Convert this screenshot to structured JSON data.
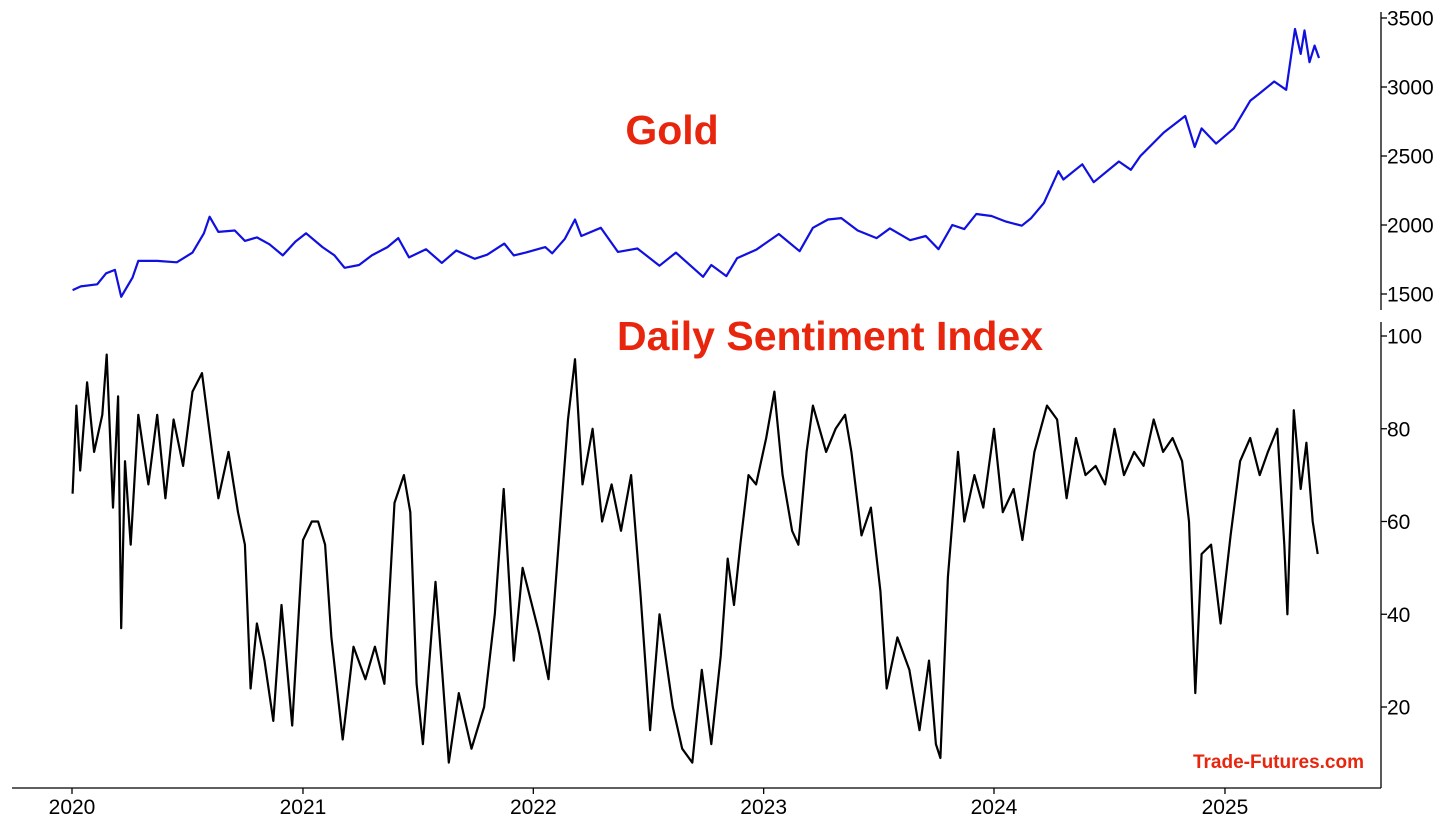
{
  "chart_data": [
    {
      "type": "line",
      "title": "Gold",
      "x_range": [
        "2020-01-01",
        "2025-05-31"
      ],
      "ylim": [
        1400,
        3520
      ],
      "y_ticks": [
        "1500",
        "2000",
        "2500",
        "3000",
        "3500"
      ],
      "grid": false,
      "color": "#1010e0",
      "series": [
        {
          "points": [
            [
              "2020-01-02",
              1528
            ],
            [
              "2020-01-15",
              1555
            ],
            [
              "2020-02-10",
              1570
            ],
            [
              "2020-02-24",
              1650
            ],
            [
              "2020-03-09",
              1675
            ],
            [
              "2020-03-19",
              1480
            ],
            [
              "2020-04-06",
              1620
            ],
            [
              "2020-04-15",
              1740
            ],
            [
              "2020-05-15",
              1740
            ],
            [
              "2020-06-15",
              1730
            ],
            [
              "2020-07-10",
              1800
            ],
            [
              "2020-07-28",
              1940
            ],
            [
              "2020-08-06",
              2060
            ],
            [
              "2020-08-20",
              1950
            ],
            [
              "2020-09-15",
              1960
            ],
            [
              "2020-10-01",
              1885
            ],
            [
              "2020-10-20",
              1910
            ],
            [
              "2020-11-09",
              1860
            ],
            [
              "2020-11-30",
              1780
            ],
            [
              "2020-12-20",
              1880
            ],
            [
              "2021-01-06",
              1940
            ],
            [
              "2021-02-01",
              1840
            ],
            [
              "2021-02-20",
              1780
            ],
            [
              "2021-03-08",
              1690
            ],
            [
              "2021-03-31",
              1710
            ],
            [
              "2021-04-20",
              1780
            ],
            [
              "2021-05-15",
              1840
            ],
            [
              "2021-06-01",
              1905
            ],
            [
              "2021-06-18",
              1765
            ],
            [
              "2021-07-15",
              1825
            ],
            [
              "2021-08-09",
              1725
            ],
            [
              "2021-09-01",
              1815
            ],
            [
              "2021-09-30",
              1755
            ],
            [
              "2021-10-20",
              1785
            ],
            [
              "2021-11-16",
              1865
            ],
            [
              "2021-12-01",
              1780
            ],
            [
              "2021-12-20",
              1800
            ],
            [
              "2022-01-20",
              1840
            ],
            [
              "2022-01-31",
              1795
            ],
            [
              "2022-02-20",
              1900
            ],
            [
              "2022-03-08",
              2040
            ],
            [
              "2022-03-18",
              1920
            ],
            [
              "2022-04-18",
              1980
            ],
            [
              "2022-05-15",
              1805
            ],
            [
              "2022-06-15",
              1830
            ],
            [
              "2022-07-20",
              1705
            ],
            [
              "2022-08-15",
              1800
            ],
            [
              "2022-09-27",
              1625
            ],
            [
              "2022-10-10",
              1710
            ],
            [
              "2022-11-03",
              1630
            ],
            [
              "2022-11-20",
              1760
            ],
            [
              "2022-12-20",
              1820
            ],
            [
              "2023-01-25",
              1935
            ],
            [
              "2023-02-27",
              1810
            ],
            [
              "2023-03-20",
              1980
            ],
            [
              "2023-04-13",
              2040
            ],
            [
              "2023-05-04",
              2050
            ],
            [
              "2023-05-30",
              1960
            ],
            [
              "2023-06-29",
              1905
            ],
            [
              "2023-07-20",
              1975
            ],
            [
              "2023-08-21",
              1890
            ],
            [
              "2023-09-15",
              1920
            ],
            [
              "2023-10-05",
              1825
            ],
            [
              "2023-10-27",
              2000
            ],
            [
              "2023-11-15",
              1970
            ],
            [
              "2023-12-04",
              2080
            ],
            [
              "2023-12-28",
              2065
            ],
            [
              "2024-01-20",
              2025
            ],
            [
              "2024-02-14",
              1995
            ],
            [
              "2024-02-29",
              2050
            ],
            [
              "2024-03-20",
              2160
            ],
            [
              "2024-04-12",
              2390
            ],
            [
              "2024-04-20",
              2330
            ],
            [
              "2024-05-20",
              2440
            ],
            [
              "2024-06-07",
              2310
            ],
            [
              "2024-07-17",
              2460
            ],
            [
              "2024-08-05",
              2400
            ],
            [
              "2024-08-20",
              2500
            ],
            [
              "2024-09-26",
              2670
            ],
            [
              "2024-10-30",
              2790
            ],
            [
              "2024-11-14",
              2565
            ],
            [
              "2024-11-25",
              2700
            ],
            [
              "2024-12-18",
              2590
            ],
            [
              "2025-01-15",
              2700
            ],
            [
              "2025-02-10",
              2900
            ],
            [
              "2025-02-24",
              2950
            ],
            [
              "2025-03-20",
              3040
            ],
            [
              "2025-04-08",
              2980
            ],
            [
              "2025-04-22",
              3420
            ],
            [
              "2025-05-01",
              3240
            ],
            [
              "2025-05-07",
              3410
            ],
            [
              "2025-05-15",
              3180
            ],
            [
              "2025-05-23",
              3300
            ],
            [
              "2025-05-30",
              3210
            ]
          ]
        }
      ]
    },
    {
      "type": "line",
      "title": "Daily Sentiment Index",
      "x_range": [
        "2020-01-01",
        "2025-05-31"
      ],
      "ylim": [
        0,
        100
      ],
      "y_ticks": [
        "20",
        "40",
        "60",
        "80",
        "100"
      ],
      "x_ticks": [
        "2020",
        "2021",
        "2022",
        "2023",
        "2024",
        "2025"
      ],
      "grid": false,
      "color": "#000000",
      "series": [
        {
          "points": [
            [
              "2020-01-02",
              66
            ],
            [
              "2020-01-08",
              85
            ],
            [
              "2020-01-14",
              71
            ],
            [
              "2020-01-25",
              90
            ],
            [
              "2020-02-05",
              75
            ],
            [
              "2020-02-18",
              83
            ],
            [
              "2020-02-25",
              96
            ],
            [
              "2020-03-06",
              63
            ],
            [
              "2020-03-14",
              87
            ],
            [
              "2020-03-19",
              37
            ],
            [
              "2020-03-25",
              73
            ],
            [
              "2020-04-03",
              55
            ],
            [
              "2020-04-15",
              83
            ],
            [
              "2020-05-01",
              68
            ],
            [
              "2020-05-15",
              83
            ],
            [
              "2020-05-28",
              65
            ],
            [
              "2020-06-10",
              82
            ],
            [
              "2020-06-25",
              72
            ],
            [
              "2020-07-10",
              88
            ],
            [
              "2020-07-25",
              92
            ],
            [
              "2020-08-10",
              75
            ],
            [
              "2020-08-20",
              65
            ],
            [
              "2020-09-05",
              75
            ],
            [
              "2020-09-20",
              62
            ],
            [
              "2020-10-01",
              55
            ],
            [
              "2020-10-10",
              24
            ],
            [
              "2020-10-20",
              38
            ],
            [
              "2020-11-01",
              30
            ],
            [
              "2020-11-15",
              17
            ],
            [
              "2020-11-28",
              42
            ],
            [
              "2020-12-15",
              16
            ],
            [
              "2021-01-01",
              56
            ],
            [
              "2021-01-15",
              60
            ],
            [
              "2021-01-25",
              60
            ],
            [
              "2021-02-05",
              55
            ],
            [
              "2021-02-15",
              35
            ],
            [
              "2021-03-05",
              13
            ],
            [
              "2021-03-22",
              33
            ],
            [
              "2021-04-10",
              26
            ],
            [
              "2021-04-25",
              33
            ],
            [
              "2021-05-10",
              25
            ],
            [
              "2021-05-26",
              64
            ],
            [
              "2021-06-10",
              70
            ],
            [
              "2021-06-20",
              62
            ],
            [
              "2021-06-30",
              25
            ],
            [
              "2021-07-10",
              12
            ],
            [
              "2021-07-30",
              47
            ],
            [
              "2021-08-10",
              27
            ],
            [
              "2021-08-20",
              8
            ],
            [
              "2021-09-05",
              23
            ],
            [
              "2021-09-25",
              11
            ],
            [
              "2021-10-15",
              20
            ],
            [
              "2021-11-01",
              40
            ],
            [
              "2021-11-15",
              67
            ],
            [
              "2021-12-01",
              30
            ],
            [
              "2021-12-15",
              50
            ],
            [
              "2022-01-10",
              36
            ],
            [
              "2022-01-25",
              26
            ],
            [
              "2022-02-15",
              64
            ],
            [
              "2022-02-25",
              82
            ],
            [
              "2022-03-08",
              95
            ],
            [
              "2022-03-20",
              68
            ],
            [
              "2022-04-05",
              80
            ],
            [
              "2022-04-20",
              60
            ],
            [
              "2022-05-05",
              68
            ],
            [
              "2022-05-20",
              58
            ],
            [
              "2022-06-05",
              70
            ],
            [
              "2022-06-20",
              44
            ],
            [
              "2022-07-05",
              15
            ],
            [
              "2022-07-20",
              40
            ],
            [
              "2022-08-10",
              20
            ],
            [
              "2022-08-25",
              11
            ],
            [
              "2022-09-10",
              8
            ],
            [
              "2022-09-25",
              28
            ],
            [
              "2022-10-10",
              12
            ],
            [
              "2022-10-25",
              31
            ],
            [
              "2022-11-05",
              52
            ],
            [
              "2022-11-15",
              42
            ],
            [
              "2022-11-25",
              55
            ],
            [
              "2022-12-08",
              70
            ],
            [
              "2022-12-20",
              68
            ],
            [
              "2023-01-05",
              78
            ],
            [
              "2023-01-18",
              88
            ],
            [
              "2023-01-31",
              70
            ],
            [
              "2023-02-15",
              58
            ],
            [
              "2023-02-25",
              55
            ],
            [
              "2023-03-10",
              75
            ],
            [
              "2023-03-20",
              85
            ],
            [
              "2023-04-10",
              75
            ],
            [
              "2023-04-25",
              80
            ],
            [
              "2023-05-10",
              83
            ],
            [
              "2023-05-20",
              75
            ],
            [
              "2023-06-05",
              57
            ],
            [
              "2023-06-20",
              63
            ],
            [
              "2023-07-05",
              45
            ],
            [
              "2023-07-15",
              24
            ],
            [
              "2023-08-01",
              35
            ],
            [
              "2023-08-20",
              28
            ],
            [
              "2023-09-05",
              15
            ],
            [
              "2023-09-20",
              30
            ],
            [
              "2023-10-01",
              12
            ],
            [
              "2023-10-08",
              9
            ],
            [
              "2023-10-20",
              48
            ],
            [
              "2023-11-05",
              75
            ],
            [
              "2023-11-15",
              60
            ],
            [
              "2023-12-01",
              70
            ],
            [
              "2023-12-15",
              63
            ],
            [
              "2024-01-01",
              80
            ],
            [
              "2024-01-15",
              62
            ],
            [
              "2024-02-01",
              67
            ],
            [
              "2024-02-15",
              56
            ],
            [
              "2024-03-05",
              75
            ],
            [
              "2024-03-25",
              85
            ],
            [
              "2024-04-10",
              82
            ],
            [
              "2024-04-25",
              65
            ],
            [
              "2024-05-10",
              78
            ],
            [
              "2024-05-25",
              70
            ],
            [
              "2024-06-10",
              72
            ],
            [
              "2024-06-25",
              68
            ],
            [
              "2024-07-10",
              80
            ],
            [
              "2024-07-25",
              70
            ],
            [
              "2024-08-10",
              75
            ],
            [
              "2024-08-25",
              72
            ],
            [
              "2024-09-10",
              82
            ],
            [
              "2024-09-25",
              75
            ],
            [
              "2024-10-10",
              78
            ],
            [
              "2024-10-25",
              73
            ],
            [
              "2024-11-05",
              60
            ],
            [
              "2024-11-15",
              23
            ],
            [
              "2024-11-25",
              53
            ],
            [
              "2024-12-10",
              55
            ],
            [
              "2024-12-25",
              38
            ],
            [
              "2025-01-10",
              57
            ],
            [
              "2025-01-25",
              73
            ],
            [
              "2025-02-10",
              78
            ],
            [
              "2025-02-25",
              70
            ],
            [
              "2025-03-10",
              75
            ],
            [
              "2025-03-25",
              80
            ],
            [
              "2025-04-05",
              55
            ],
            [
              "2025-04-10",
              40
            ],
            [
              "2025-04-20",
              84
            ],
            [
              "2025-05-01",
              67
            ],
            [
              "2025-05-10",
              77
            ],
            [
              "2025-05-20",
              60
            ],
            [
              "2025-05-28",
              53
            ]
          ]
        }
      ]
    }
  ],
  "watermark": "Trade-Futures.com",
  "title_color": "#e8260e"
}
